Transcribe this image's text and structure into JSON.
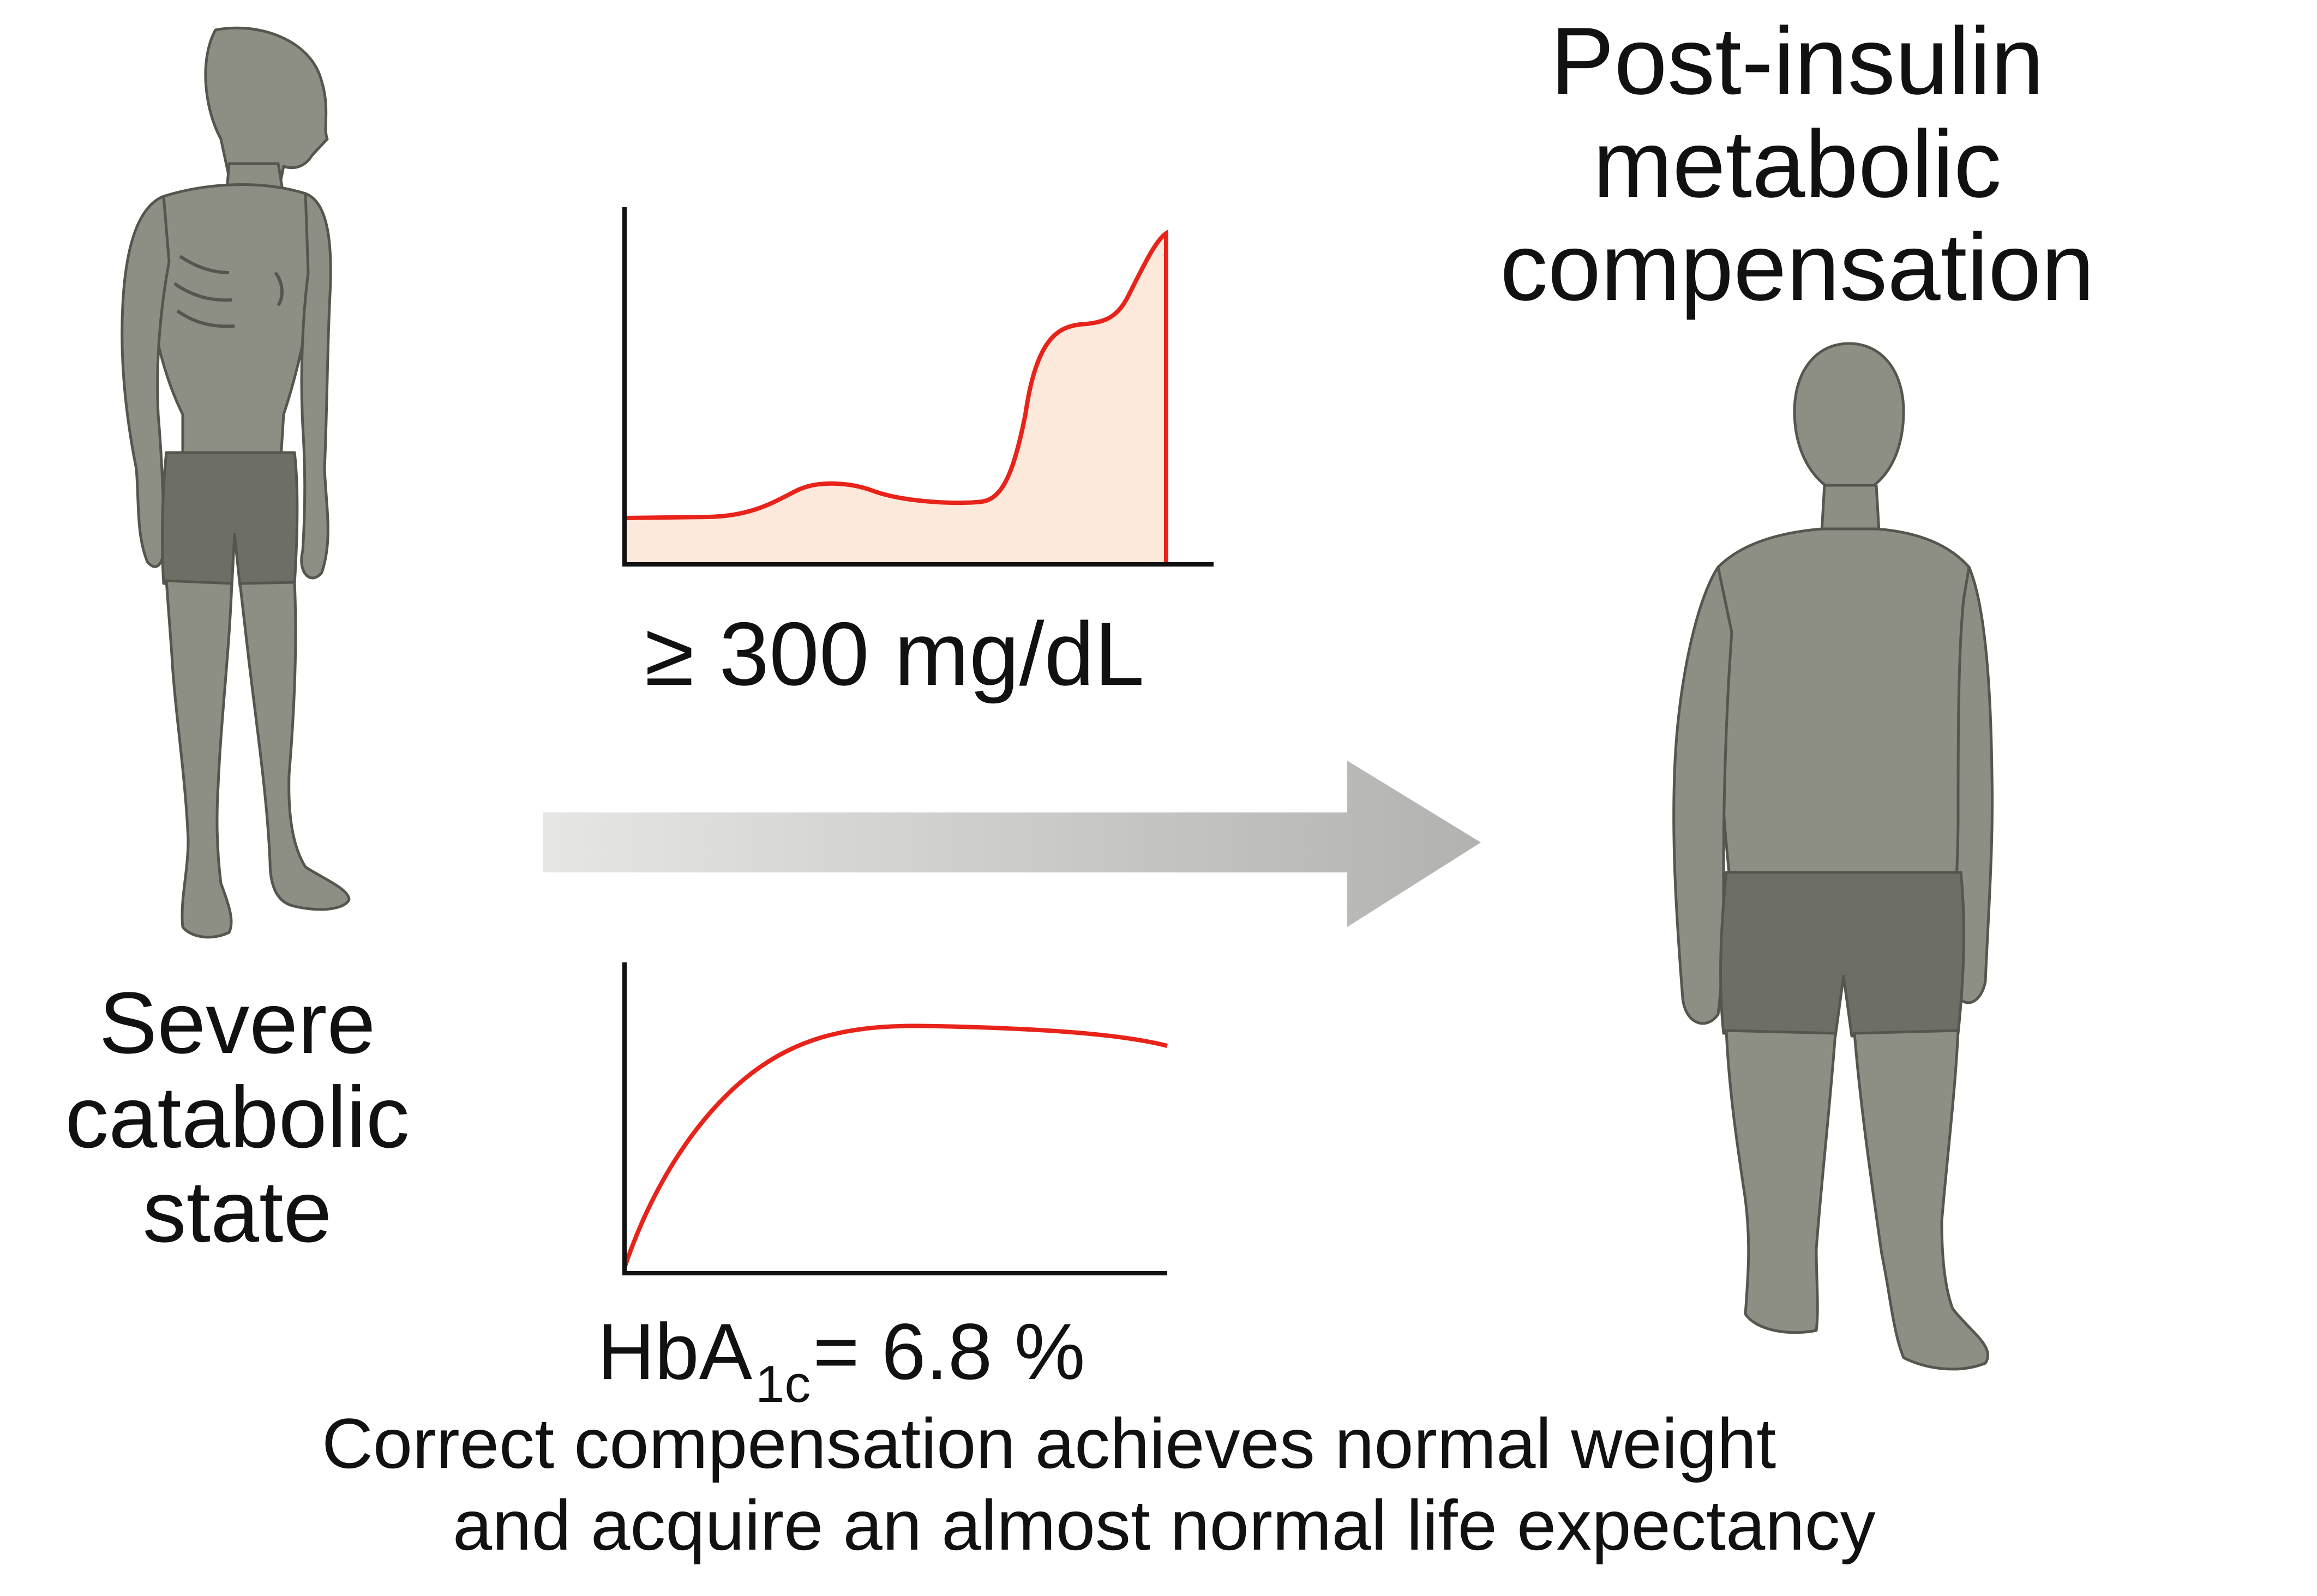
{
  "colors": {
    "figure_fill": "#8d8e84",
    "figure_stroke": "#55574f",
    "shorts": "#6d6e66",
    "curve": "#e8231a",
    "curve_fill": "#fde9dc",
    "arrow": "#b2b2b0",
    "axis": "#111111"
  },
  "left_figure": {
    "label": "Severe\ncatabolic\nstate"
  },
  "right_figure": {
    "label": "Post-insulin\nmetabolic\ncompensation"
  },
  "glucose_chart": {
    "label": "≥ 300 mg/dL"
  },
  "hba1c_chart": {
    "prefix": "HbA",
    "subscript": "1c",
    "suffix": "= 6.8 %"
  },
  "caption": {
    "line1": "Correct compensation achieves normal weight",
    "line2": "and acquire an almost normal life expectancy"
  }
}
